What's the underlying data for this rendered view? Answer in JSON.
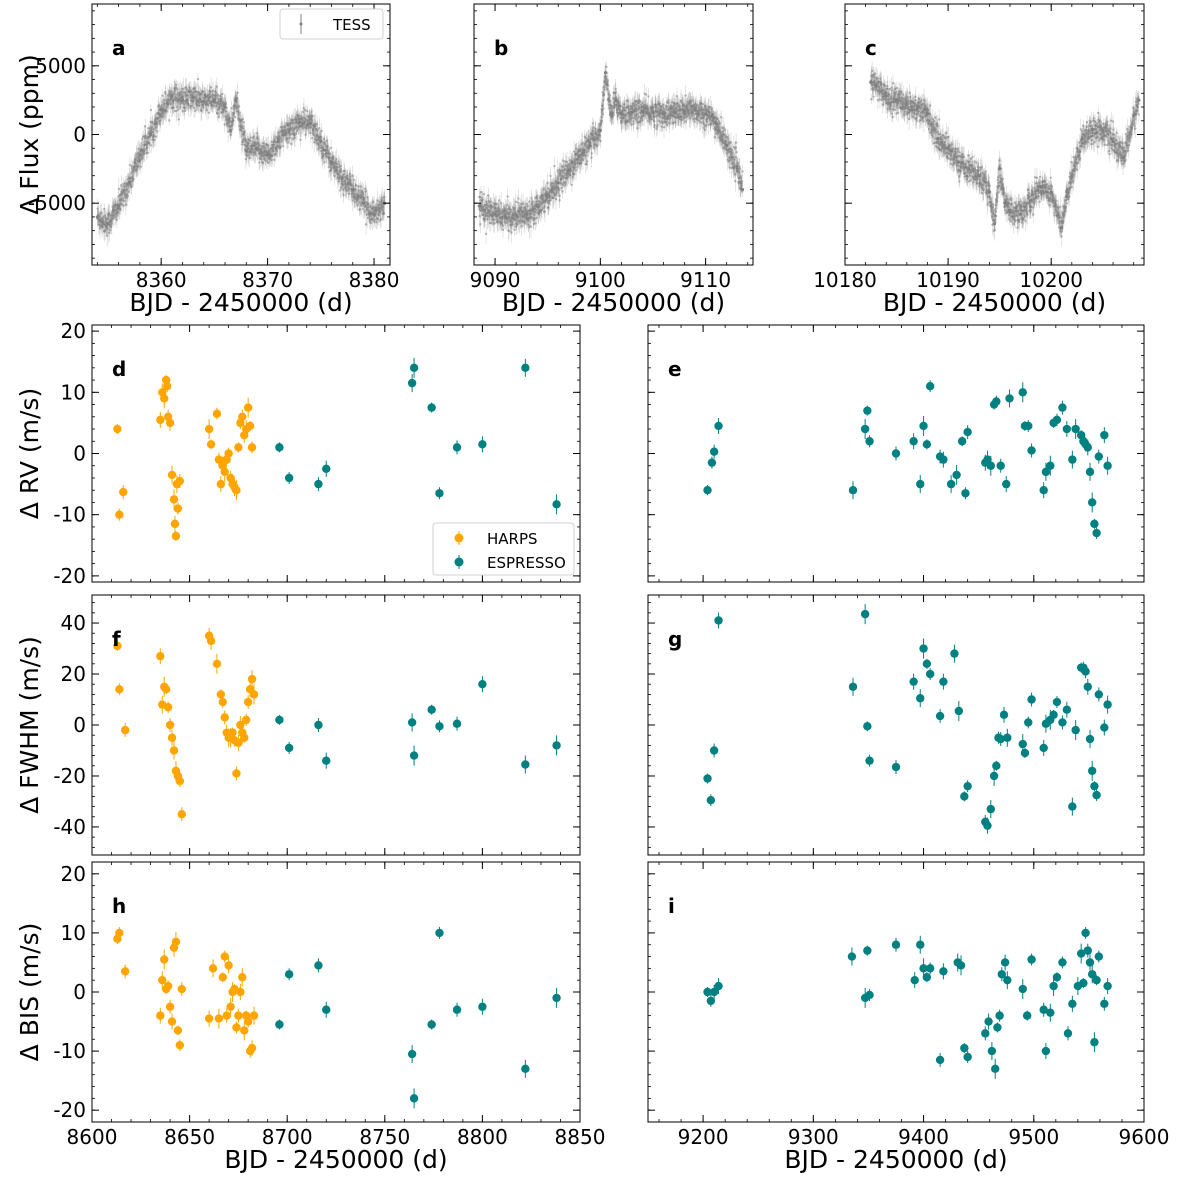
{
  "figure": {
    "colors": {
      "tess": "#808080",
      "harps": "#FFA500",
      "espresso": "#008080"
    },
    "legend_top": {
      "label": "TESS"
    },
    "legend_rv": {
      "harps": "HARPS",
      "espresso": "ESPRESSO"
    }
  },
  "chart_data": [
    {
      "type": "scatter",
      "panel": "a",
      "title": "",
      "xlabel": "BJD - 2450000 (d)",
      "ylabel": "Δ Flux (ppm)",
      "xlim": [
        8353.5,
        8381.5
      ],
      "ylim": [
        -9500,
        9500
      ],
      "xticks": [
        8360,
        8370,
        8380
      ],
      "yticks": [
        -5000,
        0,
        5000
      ],
      "legend": "top-right",
      "series": [
        {
          "name": "TESS",
          "x": [
            8354,
            8355,
            8356,
            8357,
            8358,
            8359,
            8360,
            8361,
            8362,
            8363,
            8364,
            8365,
            8366,
            8366.5,
            8367,
            8368,
            8369,
            8370,
            8371,
            8372,
            8373,
            8374,
            8375,
            8376,
            8377,
            8378,
            8379,
            8380,
            8381
          ],
          "y": [
            -6000,
            -6500,
            -5200,
            -3500,
            -1500,
            0,
            1800,
            2800,
            2500,
            2700,
            2400,
            2500,
            2000,
            300,
            2500,
            -1200,
            -1000,
            -1500,
            -500,
            300,
            900,
            800,
            -500,
            -2000,
            -3200,
            -4000,
            -5000,
            -5800,
            -5000
          ]
        }
      ]
    },
    {
      "type": "scatter",
      "panel": "b",
      "title": "",
      "xlabel": "BJD - 2450000 (d)",
      "ylabel": "",
      "xlim": [
        9088,
        9114.5
      ],
      "ylim": [
        -9500,
        9500
      ],
      "xticks": [
        9090,
        9100,
        9110
      ],
      "yticks": [
        -5000,
        0,
        5000
      ],
      "series": [
        {
          "name": "TESS",
          "x": [
            9088.5,
            9089,
            9090,
            9091,
            9092,
            9093,
            9094,
            9095,
            9096,
            9097,
            9098,
            9099,
            9100,
            9100.5,
            9101,
            9101.5,
            9102,
            9103,
            9104,
            9105,
            9106,
            9107,
            9108,
            9109,
            9110,
            9111,
            9112,
            9113,
            9113.5
          ],
          "y": [
            -5200,
            -5500,
            -5800,
            -6000,
            -5900,
            -5800,
            -5200,
            -4400,
            -3500,
            -2600,
            -1600,
            -800,
            300,
            4500,
            1500,
            2500,
            1500,
            1600,
            1700,
            1600,
            1500,
            1600,
            1700,
            1800,
            1500,
            800,
            -800,
            -2500,
            -4000
          ]
        }
      ]
    },
    {
      "type": "scatter",
      "panel": "c",
      "title": "",
      "xlabel": "BJD - 2450000 (d)",
      "ylabel": "",
      "xlim": [
        10180,
        10209
      ],
      "ylim": [
        -9500,
        9500
      ],
      "xticks": [
        10180,
        10190,
        10200
      ],
      "yticks": [
        -5000,
        0,
        5000
      ],
      "series": [
        {
          "name": "TESS",
          "x": [
            10182.5,
            10183,
            10184,
            10185,
            10186,
            10187,
            10188,
            10189,
            10190,
            10191,
            10192,
            10193,
            10194,
            10194.5,
            10195,
            10195.5,
            10196,
            10197,
            10198,
            10199,
            10200,
            10201,
            10201.5,
            10202,
            10203,
            10204,
            10205,
            10206,
            10207,
            10208.5
          ],
          "y": [
            3800,
            3600,
            2800,
            2500,
            2200,
            1900,
            1500,
            -300,
            -1000,
            -2000,
            -2500,
            -3000,
            -4200,
            -6500,
            -2500,
            -5000,
            -5500,
            -5800,
            -4800,
            -3800,
            -4200,
            -6800,
            -4500,
            -3000,
            -300,
            400,
            300,
            -500,
            -1700,
            2500
          ]
        }
      ]
    },
    {
      "type": "scatter",
      "panel": "d",
      "title": "",
      "xlabel": "",
      "ylabel": "Δ RV (m/s)",
      "xlim": [
        8600,
        8850
      ],
      "ylim": [
        -21,
        21
      ],
      "xticks": [
        8600,
        8650,
        8700,
        8750,
        8800,
        8850
      ],
      "yticks": [
        -20,
        -10,
        0,
        10,
        20
      ],
      "legend": "lower-right",
      "series": [
        {
          "name": "HARPS",
          "x": [
            8613,
            8614,
            8616,
            8635,
            8636,
            8637,
            8638,
            8638.5,
            8639,
            8640,
            8641,
            8642,
            8643,
            8644,
            8645,
            8642.5,
            8643.5,
            8660,
            8661,
            8664,
            8665,
            8666,
            8667,
            8668,
            8669,
            8670,
            8671,
            8672,
            8673,
            8674,
            8675,
            8676,
            8677,
            8678,
            8679,
            8680,
            8681,
            8682
          ],
          "y": [
            4,
            -10,
            -6.3,
            5.5,
            10,
            9,
            12,
            11,
            6,
            5,
            -3.5,
            -7.5,
            -13.5,
            -9,
            -4.5,
            -11.5,
            -5,
            4,
            1.5,
            6.5,
            -1,
            -5,
            -2,
            -3,
            -1,
            0,
            -4,
            -5,
            -5.5,
            -6,
            1,
            5,
            6,
            3,
            4,
            7.5,
            4.5,
            1
          ]
        },
        {
          "name": "ESPRESSO",
          "x": [
            8696,
            8701,
            8716,
            8720,
            8764,
            8765,
            8774,
            8778,
            8787,
            8800,
            8822,
            8838
          ],
          "y": [
            1,
            -4,
            -5,
            -2.5,
            11.5,
            14,
            7.5,
            -6.5,
            1,
            1.5,
            14,
            -8.3
          ]
        }
      ]
    },
    {
      "type": "scatter",
      "panel": "e",
      "title": "",
      "xlabel": "",
      "ylabel": "",
      "xlim": [
        9150,
        9600
      ],
      "ylim": [
        -21,
        21
      ],
      "xticks": [
        9200,
        9300,
        9400,
        9500,
        9600
      ],
      "yticks": [
        -20,
        -10,
        0,
        10,
        20
      ],
      "series": [
        {
          "name": "ESPRESSO",
          "x": [
            9204,
            9208,
            9210,
            9214,
            9336,
            9347,
            9349,
            9351,
            9375,
            9391,
            9397,
            9400,
            9403,
            9406,
            9415,
            9418,
            9425,
            9430,
            9435,
            9438,
            9440,
            9456,
            9458,
            9461,
            9464,
            9466,
            9470,
            9475,
            9478,
            9490,
            9492,
            9495,
            9498,
            9509,
            9511,
            9515,
            9518,
            9521,
            9526,
            9530,
            9535,
            9538,
            9543,
            9545,
            9547,
            9549,
            9551,
            9553,
            9555,
            9557,
            9559,
            9564,
            9567
          ],
          "y": [
            -6,
            -1.5,
            0.3,
            4.5,
            -6,
            4,
            7,
            2,
            0,
            2,
            -5,
            4.5,
            1.5,
            11,
            -0.5,
            -1,
            -5,
            -3.5,
            2,
            -6.5,
            3.5,
            -1.5,
            -1,
            -2,
            8,
            8.5,
            -2,
            -5,
            9,
            10,
            4.5,
            4.5,
            0.5,
            -6,
            -3,
            -2,
            5,
            5.5,
            7.5,
            4,
            -1,
            4,
            3,
            2,
            1.5,
            1,
            -3,
            -8,
            -11.5,
            -13,
            -0.5,
            3,
            -2
          ]
        }
      ]
    },
    {
      "type": "scatter",
      "panel": "f",
      "title": "",
      "xlabel": "",
      "ylabel": "Δ FWHM (m/s)",
      "xlim": [
        8600,
        8850
      ],
      "ylim": [
        -51,
        51
      ],
      "xticks": [
        8600,
        8650,
        8700,
        8750,
        8800,
        8850
      ],
      "yticks": [
        -40,
        -20,
        0,
        20,
        40
      ],
      "series": [
        {
          "name": "HARPS",
          "x": [
            8613,
            8614,
            8617,
            8635,
            8636,
            8637,
            8638,
            8639,
            8640,
            8641,
            8642,
            8643,
            8644,
            8645,
            8646,
            8660,
            8661,
            8664,
            8666,
            8667,
            8668,
            8669,
            8670,
            8671,
            8672,
            8673,
            8674,
            8675,
            8676,
            8677,
            8678,
            8679,
            8680,
            8681,
            8682,
            8683
          ],
          "y": [
            31,
            14,
            -2,
            27,
            8,
            15,
            14,
            7,
            0,
            -5,
            -10,
            -18,
            -20,
            -22,
            -35,
            35,
            33,
            24,
            12,
            9,
            3,
            -3,
            -5,
            -5,
            -3,
            -6,
            -19,
            -7,
            0,
            -3,
            -5,
            2,
            9,
            14,
            18,
            12
          ]
        },
        {
          "name": "ESPRESSO",
          "x": [
            8696,
            8701,
            8716,
            8720,
            8764,
            8765,
            8774,
            8778,
            8787,
            8800,
            8822,
            8838
          ],
          "y": [
            2,
            -9,
            0,
            -14,
            1,
            -12,
            6,
            -0.5,
            0.5,
            16,
            -15.5,
            -8
          ]
        }
      ]
    },
    {
      "type": "scatter",
      "panel": "g",
      "title": "",
      "xlabel": "",
      "ylabel": "",
      "xlim": [
        9150,
        9600
      ],
      "ylim": [
        -51,
        51
      ],
      "xticks": [
        9200,
        9300,
        9400,
        9500,
        9600
      ],
      "yticks": [
        -40,
        -20,
        0,
        20,
        40
      ],
      "series": [
        {
          "name": "ESPRESSO",
          "x": [
            9204,
            9207,
            9210,
            9214,
            9336,
            9347,
            9349,
            9351,
            9375,
            9391,
            9397,
            9400,
            9403,
            9406,
            9415,
            9418,
            9428,
            9432,
            9437,
            9440,
            9456,
            9458,
            9461,
            9464,
            9466,
            9468,
            9470,
            9473,
            9476,
            9490,
            9492,
            9495,
            9498,
            9509,
            9511,
            9515,
            9518,
            9521,
            9526,
            9530,
            9535,
            9538,
            9543,
            9545,
            9547,
            9549,
            9551,
            9553,
            9555,
            9557,
            9559,
            9564,
            9567
          ],
          "y": [
            -21,
            -29.5,
            -10,
            41,
            15,
            43.5,
            -0.5,
            -14,
            -16.5,
            17,
            10.5,
            30,
            24,
            20,
            3.5,
            17,
            28,
            5.5,
            -28,
            -24,
            -38,
            -39.5,
            -33,
            -20,
            -16,
            -5,
            -5.5,
            4,
            -5,
            -7.5,
            -11,
            1,
            10,
            -9,
            0.5,
            2,
            4,
            9,
            1,
            6,
            -32,
            -2,
            22.5,
            22.5,
            21,
            15,
            -5.5,
            -18,
            -24,
            -27.5,
            12,
            -1,
            8
          ]
        }
      ]
    },
    {
      "type": "scatter",
      "panel": "h",
      "title": "",
      "xlabel": "BJD - 2450000 (d)",
      "ylabel": "Δ BIS (m/s)",
      "xlim": [
        8600,
        8850
      ],
      "ylim": [
        -22,
        22
      ],
      "xticks": [
        8600,
        8650,
        8700,
        8750,
        8800,
        8850
      ],
      "yticks": [
        -20,
        -10,
        0,
        10,
        20
      ],
      "series": [
        {
          "name": "HARPS",
          "x": [
            8613,
            8614,
            8617,
            8635,
            8636,
            8637,
            8638,
            8639,
            8640,
            8641,
            8642,
            8643,
            8644,
            8645,
            8646,
            8660,
            8662,
            8665,
            8667,
            8668,
            8669,
            8670,
            8671,
            8672,
            8673,
            8674,
            8675,
            8676,
            8677,
            8678,
            8679,
            8680,
            8681,
            8682,
            8683
          ],
          "y": [
            9,
            10,
            3.5,
            -4,
            2,
            5.5,
            0.5,
            1,
            -2.5,
            -5,
            7.5,
            8.5,
            -6.5,
            -9,
            0.5,
            -4.5,
            4,
            -4.5,
            2.5,
            6,
            -4,
            4.5,
            -2.5,
            0,
            0.5,
            -6,
            -4,
            0,
            2.5,
            -6.5,
            -4,
            -5,
            -10,
            -9.5,
            -4
          ]
        },
        {
          "name": "ESPRESSO",
          "x": [
            8696,
            8701,
            8716,
            8720,
            8764,
            8765,
            8774,
            8778,
            8787,
            8800,
            8822,
            8838
          ],
          "y": [
            -5.5,
            3,
            4.5,
            -3,
            -10.5,
            -18,
            -5.5,
            10,
            -3,
            -2.5,
            -13,
            -1
          ]
        }
      ]
    },
    {
      "type": "scatter",
      "panel": "i",
      "title": "",
      "xlabel": "BJD - 2450000 (d)",
      "ylabel": "",
      "xlim": [
        9150,
        9600
      ],
      "ylim": [
        -22,
        22
      ],
      "xticks": [
        9200,
        9300,
        9400,
        9500,
        9600
      ],
      "yticks": [
        -20,
        -10,
        0,
        10,
        20
      ],
      "series": [
        {
          "name": "ESPRESSO",
          "x": [
            9204,
            9207,
            9210,
            9214,
            9335,
            9347,
            9349,
            9351,
            9375,
            9392,
            9397,
            9400,
            9403,
            9406,
            9415,
            9418,
            9431,
            9434,
            9437,
            9440,
            9456,
            9459,
            9462,
            9465,
            9467,
            9469,
            9471,
            9474,
            9476,
            9490,
            9494,
            9498,
            9509,
            9511,
            9515,
            9518,
            9521,
            9526,
            9531,
            9535,
            9540,
            9543,
            9545,
            9547,
            9549,
            9551,
            9553,
            9555,
            9557,
            9559,
            9564,
            9567
          ],
          "y": [
            0,
            -1.5,
            0,
            1,
            6,
            -1,
            7,
            -0.5,
            8,
            2,
            8,
            4,
            2.5,
            4,
            -11.5,
            3.5,
            5,
            4.5,
            -9.5,
            -11,
            -7,
            -5,
            -10,
            -13,
            -6,
            -4,
            3,
            5,
            2,
            0.5,
            -4,
            5.5,
            -3,
            -10,
            -3.5,
            1,
            2.5,
            5,
            -7,
            -2,
            1,
            6.5,
            1.5,
            10,
            7,
            5,
            3,
            -8.5,
            2,
            6,
            -2,
            1
          ]
        }
      ]
    }
  ]
}
